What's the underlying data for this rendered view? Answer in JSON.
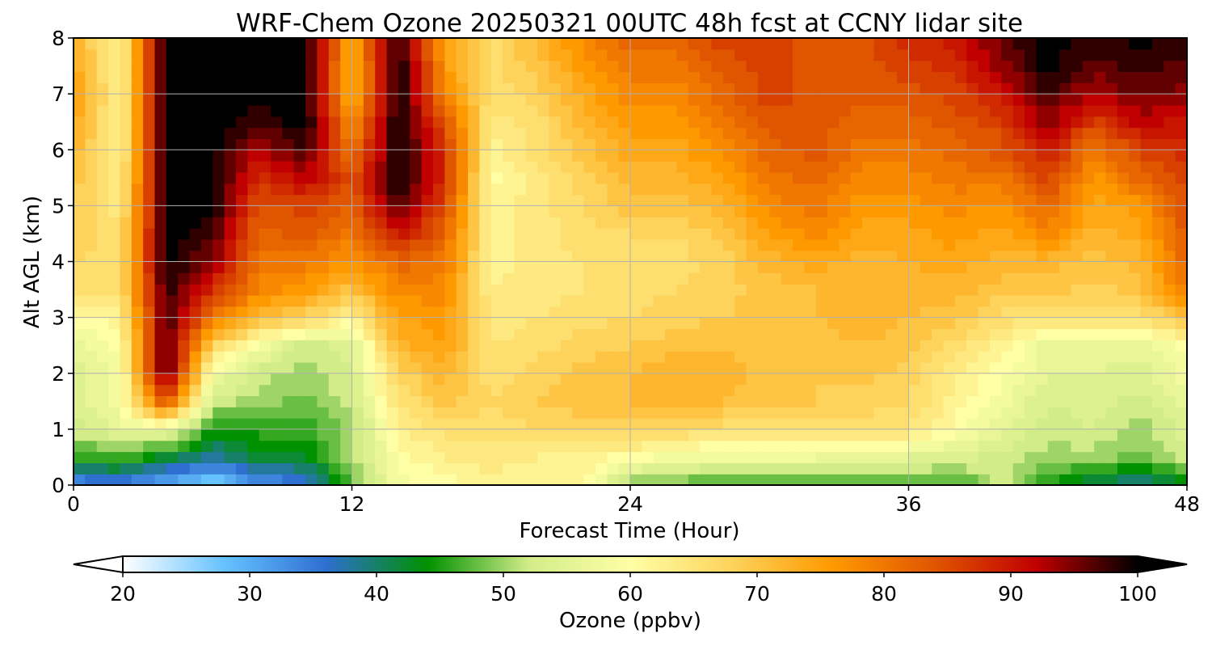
{
  "chart_data": {
    "type": "heatmap",
    "title": "WRF-Chem Ozone  20250321 00UTC 48h fcst at CCNY lidar site",
    "xlabel": "Forecast Time (Hour)",
    "ylabel": "Alt AGL (km)",
    "xlim": [
      0,
      48
    ],
    "ylim": [
      0,
      8
    ],
    "x_ticks": [
      0,
      12,
      24,
      36,
      48
    ],
    "y_ticks": [
      0,
      1,
      2,
      3,
      4,
      5,
      6,
      7,
      8
    ],
    "grid": true,
    "x": [
      0,
      2,
      4,
      6,
      8,
      10,
      12,
      14,
      16,
      18,
      20,
      22,
      24,
      26,
      28,
      30,
      32,
      34,
      36,
      38,
      40,
      42,
      44,
      46,
      48
    ],
    "y": [
      0,
      0.5,
      1,
      1.5,
      2,
      2.5,
      3,
      3.5,
      4,
      4.5,
      5,
      5.5,
      6,
      6.5,
      7,
      7.5,
      8
    ],
    "values": [
      [
        32,
        33,
        30,
        25,
        32,
        35,
        48,
        58,
        60,
        62,
        62,
        62,
        48,
        47,
        46,
        45,
        46,
        46,
        47,
        45,
        52,
        45,
        40,
        38,
        42
      ],
      [
        45,
        47,
        42,
        38,
        42,
        42,
        50,
        60,
        63,
        64,
        63,
        62,
        60,
        58,
        57,
        57,
        57,
        56,
        55,
        54,
        52,
        50,
        50,
        48,
        52
      ],
      [
        52,
        56,
        57,
        44,
        46,
        46,
        50,
        62,
        66,
        66,
        67,
        68,
        68,
        67,
        66,
        66,
        66,
        66,
        65,
        60,
        56,
        52,
        53,
        50,
        54
      ],
      [
        54,
        58,
        85,
        52,
        50,
        48,
        52,
        65,
        70,
        67,
        69,
        70,
        71,
        72,
        71,
        70,
        69,
        68,
        67,
        62,
        58,
        53,
        54,
        52,
        56
      ],
      [
        54,
        58,
        98,
        58,
        52,
        50,
        53,
        68,
        72,
        66,
        68,
        70,
        71,
        73,
        72,
        70,
        69,
        70,
        68,
        63,
        60,
        55,
        55,
        54,
        58
      ],
      [
        56,
        60,
        98,
        68,
        58,
        52,
        54,
        72,
        75,
        65,
        66,
        68,
        69,
        70,
        71,
        70,
        70,
        71,
        70,
        66,
        62,
        56,
        56,
        56,
        60
      ],
      [
        60,
        62,
        98,
        80,
        72,
        68,
        62,
        75,
        76,
        64,
        65,
        66,
        67,
        68,
        69,
        70,
        71,
        72,
        71,
        70,
        66,
        66,
        65,
        66,
        70
      ],
      [
        65,
        66,
        99,
        88,
        78,
        76,
        70,
        78,
        78,
        63,
        64,
        65,
        66,
        67,
        68,
        70,
        71,
        72,
        72,
        72,
        70,
        70,
        68,
        70,
        80
      ],
      [
        67,
        66,
        100,
        94,
        80,
        80,
        76,
        82,
        80,
        62,
        64,
        65,
        66,
        66,
        68,
        72,
        74,
        72,
        73,
        74,
        72,
        72,
        70,
        72,
        82
      ],
      [
        68,
        66,
        100,
        98,
        82,
        84,
        80,
        90,
        82,
        62,
        64,
        66,
        67,
        67,
        70,
        75,
        78,
        74,
        74,
        76,
        74,
        78,
        72,
        74,
        84
      ],
      [
        69,
        64,
        100,
        100,
        84,
        86,
        82,
        98,
        85,
        62,
        64,
        67,
        70,
        70,
        72,
        78,
        80,
        76,
        76,
        78,
        76,
        82,
        74,
        76,
        85
      ],
      [
        70,
        63,
        100,
        100,
        88,
        92,
        84,
        100,
        88,
        60,
        64,
        68,
        72,
        72,
        75,
        80,
        82,
        78,
        78,
        80,
        80,
        86,
        76,
        82,
        86
      ],
      [
        72,
        62,
        100,
        100,
        92,
        98,
        80,
        100,
        88,
        62,
        66,
        70,
        74,
        74,
        78,
        82,
        84,
        80,
        80,
        82,
        84,
        90,
        80,
        86,
        88
      ],
      [
        74,
        62,
        100,
        100,
        98,
        100,
        76,
        100,
        84,
        64,
        66,
        72,
        76,
        76,
        80,
        84,
        84,
        82,
        82,
        84,
        86,
        94,
        86,
        92,
        90
      ],
      [
        76,
        62,
        100,
        100,
        100,
        100,
        72,
        100,
        78,
        66,
        68,
        74,
        78,
        78,
        82,
        86,
        84,
        84,
        84,
        86,
        90,
        98,
        92,
        96,
        94
      ],
      [
        74,
        62,
        100,
        100,
        100,
        100,
        72,
        100,
        76,
        66,
        70,
        76,
        80,
        80,
        84,
        86,
        84,
        84,
        86,
        88,
        94,
        100,
        96,
        98,
        96
      ],
      [
        72,
        62,
        100,
        100,
        100,
        100,
        74,
        100,
        74,
        66,
        72,
        78,
        82,
        82,
        86,
        86,
        84,
        84,
        88,
        90,
        96,
        100,
        98,
        100,
        98
      ]
    ],
    "colorbar": {
      "label": "Ozone  (ppbv)",
      "min": 20,
      "max": 100,
      "ticks": [
        20,
        30,
        40,
        50,
        60,
        70,
        80,
        90,
        100
      ],
      "extend": "both",
      "colors": [
        "#ffffff",
        "#66c2ff",
        "#2e6fd0",
        "#009100",
        "#d2ec88",
        "#ffffa5",
        "#fdd35c",
        "#ff9900",
        "#e05500",
        "#c00000",
        "#000000"
      ]
    }
  }
}
